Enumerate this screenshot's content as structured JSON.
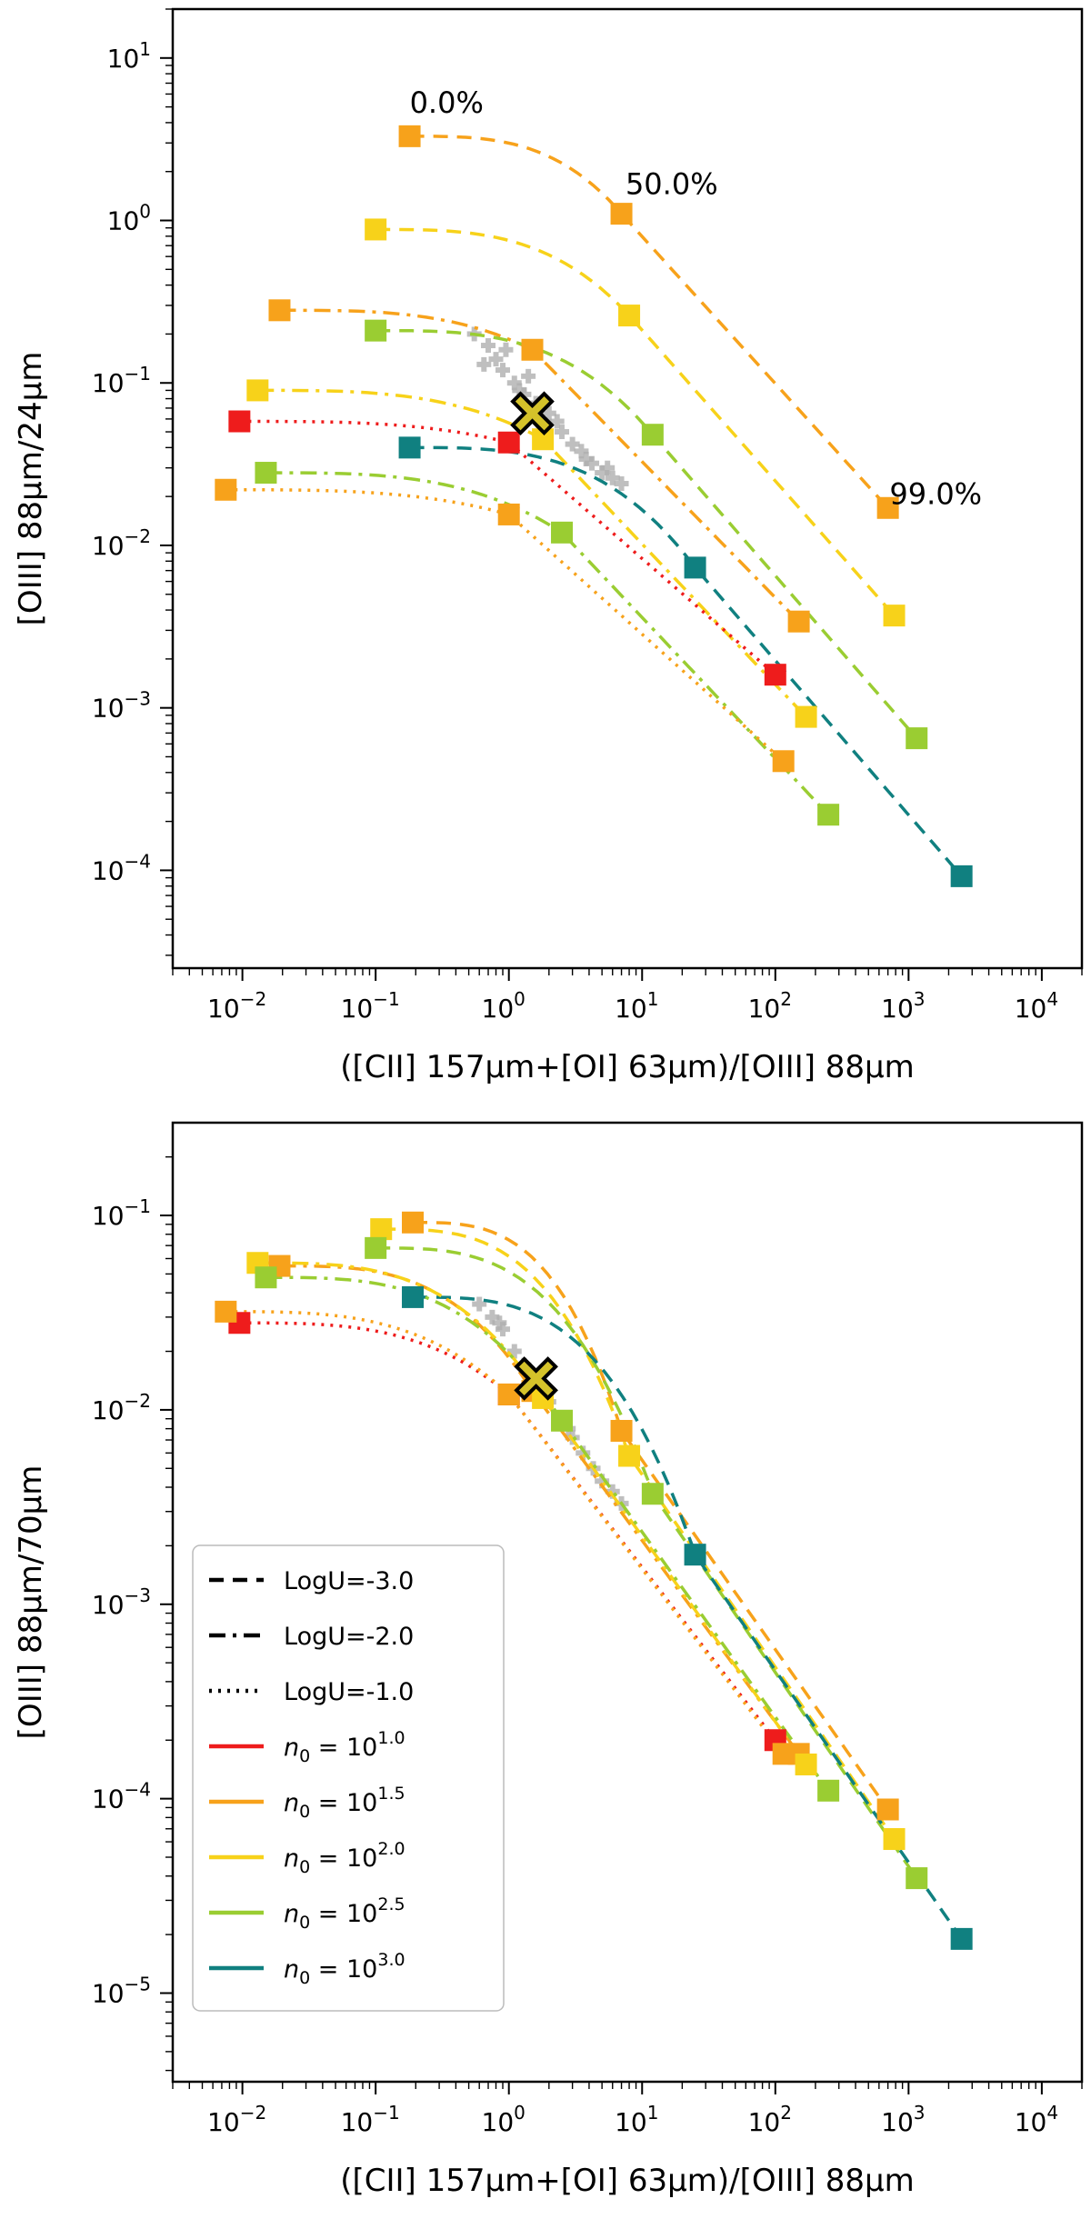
{
  "chart_data": [
    {
      "type": "line",
      "title": "",
      "xlabel": "([CII] 157µm+[OI] 63µm)/[OIII] 88µm",
      "ylabel": "[OIII] 88µm/24µm",
      "xscale": "log",
      "yscale": "log",
      "xlim": [
        0.003,
        20000
      ],
      "ylim": [
        2.5e-05,
        20
      ],
      "xtick_exponents": [
        "-2",
        "-1",
        "0",
        "1",
        "2",
        "3",
        "4"
      ],
      "ytick_exponents": [
        "-4",
        "-3",
        "-2",
        "-1",
        "0",
        "1"
      ],
      "annotations": [
        {
          "text": "0.0%",
          "x": 0.18,
          "y": 4.6
        },
        {
          "text": "50.0%",
          "x": 7.5,
          "y": 1.45
        },
        {
          "text": "99.0%",
          "x": 720,
          "y": 0.018
        }
      ],
      "series": [
        {
          "name": "n0=10^1.5, LogU=-3.0",
          "color_key": "orange",
          "style": "dashed",
          "points": [
            [
              0.18,
              3.3
            ],
            [
              7,
              1.1
            ],
            [
              700,
              0.017
            ]
          ]
        },
        {
          "name": "n0=10^2.0, LogU=-3.0",
          "color_key": "yellow",
          "style": "dashed",
          "points": [
            [
              0.1,
              0.88
            ],
            [
              8,
              0.26
            ],
            [
              780,
              0.0037
            ]
          ]
        },
        {
          "name": "n0=10^1.5, LogU=-2.0",
          "color_key": "orange",
          "style": "dashdot",
          "points": [
            [
              0.019,
              0.28
            ],
            [
              1.5,
              0.16
            ],
            [
              150,
              0.0034
            ]
          ]
        },
        {
          "name": "n0=10^2.5, LogU=-3.0",
          "color_key": "green",
          "style": "dashed",
          "points": [
            [
              0.1,
              0.21
            ],
            [
              12,
              0.048
            ],
            [
              1150,
              0.00065
            ]
          ]
        },
        {
          "name": "n0=10^2.0, LogU=-2.0",
          "color_key": "yellow",
          "style": "dashdot",
          "points": [
            [
              0.013,
              0.09
            ],
            [
              1.8,
              0.045
            ],
            [
              170,
              0.00088
            ]
          ]
        },
        {
          "name": "n0=10^1.0, LogU=-1.0",
          "color_key": "red",
          "style": "dotted",
          "points": [
            [
              0.0095,
              0.058
            ],
            [
              1.0,
              0.043
            ],
            [
              100,
              0.0016
            ]
          ]
        },
        {
          "name": "n0=10^3.0, LogU=-3.0",
          "color_key": "teal",
          "style": "dashed",
          "points": [
            [
              0.18,
              0.04
            ],
            [
              25,
              0.0073
            ],
            [
              2500,
              9.2e-05
            ]
          ]
        },
        {
          "name": "n0=10^2.5, LogU=-2.0",
          "color_key": "green",
          "style": "dashdot",
          "points": [
            [
              0.015,
              0.028
            ],
            [
              2.5,
              0.012
            ],
            [
              250,
              0.00022
            ]
          ]
        },
        {
          "name": "n0=10^1.5, LogU=-1.0",
          "color_key": "orange",
          "style": "dotted",
          "points": [
            [
              0.0075,
              0.022
            ],
            [
              1.0,
              0.0155
            ],
            [
              115,
              0.00047
            ]
          ]
        }
      ],
      "observations": [
        [
          0.55,
          0.2
        ],
        [
          0.7,
          0.17
        ],
        [
          0.65,
          0.13
        ],
        [
          0.9,
          0.12
        ],
        [
          1.1,
          0.1
        ],
        [
          0.8,
          0.14
        ],
        [
          1.3,
          0.085
        ],
        [
          1.6,
          0.075
        ],
        [
          2.0,
          0.065
        ],
        [
          1.8,
          0.055
        ],
        [
          2.5,
          0.05
        ],
        [
          3.0,
          0.042
        ],
        [
          3.5,
          0.038
        ],
        [
          4.2,
          0.032
        ],
        [
          5.0,
          0.028
        ],
        [
          6.0,
          0.026
        ],
        [
          7.0,
          0.024
        ],
        [
          1.2,
          0.09
        ],
        [
          2.3,
          0.058
        ],
        [
          3.8,
          0.034
        ],
        [
          5.5,
          0.03
        ],
        [
          0.95,
          0.16
        ],
        [
          1.4,
          0.11
        ]
      ],
      "marker": {
        "x": 1.5,
        "y": 0.065
      }
    },
    {
      "type": "line",
      "title": "",
      "xlabel": "([CII] 157µm+[OI] 63µm)/[OIII] 88µm",
      "ylabel": "[OIII] 88µm/70µm",
      "xscale": "log",
      "yscale": "log",
      "xlim": [
        0.003,
        20000
      ],
      "ylim": [
        3.5e-06,
        0.3
      ],
      "xtick_exponents": [
        "-2",
        "-1",
        "0",
        "1",
        "2",
        "3",
        "4"
      ],
      "ytick_exponents": [
        "-5",
        "-4",
        "-3",
        "-2",
        "-1"
      ],
      "legend_position": "lower-left",
      "series": [
        {
          "name": "n0=10^1.5, LogU=-3.0",
          "color_key": "orange",
          "style": "dashed",
          "points": [
            [
              0.19,
              0.092
            ],
            [
              7,
              0.0078
            ],
            [
              700,
              8.8e-05
            ]
          ]
        },
        {
          "name": "n0=10^2.0, LogU=-3.0",
          "color_key": "yellow",
          "style": "dashed",
          "points": [
            [
              0.11,
              0.085
            ],
            [
              8,
              0.0058
            ],
            [
              780,
              6.2e-05
            ]
          ]
        },
        {
          "name": "n0=10^2.5, LogU=-3.0",
          "color_key": "green",
          "style": "dashed",
          "points": [
            [
              0.1,
              0.068
            ],
            [
              12,
              0.0037
            ],
            [
              1150,
              3.9e-05
            ]
          ]
        },
        {
          "name": "n0=10^3.0, LogU=-3.0",
          "color_key": "teal",
          "style": "dashed",
          "points": [
            [
              0.19,
              0.038
            ],
            [
              25,
              0.0018
            ],
            [
              2500,
              1.9e-05
            ]
          ]
        },
        {
          "name": "n0=10^1.5, LogU=-2.0",
          "color_key": "orange",
          "style": "dashdot",
          "points": [
            [
              0.019,
              0.055
            ],
            [
              1.5,
              0.0125
            ],
            [
              150,
              0.00017
            ]
          ]
        },
        {
          "name": "n0=10^2.0, LogU=-2.0",
          "color_key": "yellow",
          "style": "dashdot",
          "points": [
            [
              0.013,
              0.057
            ],
            [
              1.8,
              0.0115
            ],
            [
              170,
              0.00015
            ]
          ]
        },
        {
          "name": "n0=10^2.5, LogU=-2.0",
          "color_key": "green",
          "style": "dashdot",
          "points": [
            [
              0.015,
              0.048
            ],
            [
              2.5,
              0.0088
            ],
            [
              250,
              0.00011
            ]
          ]
        },
        {
          "name": "n0=10^1.0, LogU=-1.0",
          "color_key": "red",
          "style": "dotted",
          "points": [
            [
              0.0095,
              0.028
            ],
            [
              1.0,
              0.012
            ],
            [
              100,
              0.0002
            ]
          ]
        },
        {
          "name": "n0=10^1.5, LogU=-1.0",
          "color_key": "orange",
          "style": "dotted",
          "points": [
            [
              0.0075,
              0.032
            ],
            [
              1.0,
              0.012
            ],
            [
              115,
              0.00017
            ]
          ]
        }
      ],
      "observations": [
        [
          0.6,
          0.035
        ],
        [
          0.75,
          0.03
        ],
        [
          0.9,
          0.026
        ],
        [
          1.1,
          0.02
        ],
        [
          1.3,
          0.017
        ],
        [
          1.6,
          0.014
        ],
        [
          2.0,
          0.011
        ],
        [
          2.4,
          0.009
        ],
        [
          3.0,
          0.0072
        ],
        [
          3.6,
          0.006
        ],
        [
          4.3,
          0.005
        ],
        [
          5.0,
          0.0043
        ],
        [
          6.0,
          0.0038
        ],
        [
          7.0,
          0.0033
        ],
        [
          0.85,
          0.028
        ],
        [
          1.8,
          0.012
        ],
        [
          2.8,
          0.008
        ]
      ],
      "marker": {
        "x": 1.6,
        "y": 0.0145
      },
      "legend": [
        {
          "label": "LogU=-3.0",
          "style": "dashed",
          "color_key": "black"
        },
        {
          "label": "LogU=-2.0",
          "style": "dashdot",
          "color_key": "black"
        },
        {
          "label": "LogU=-1.0",
          "style": "dotted",
          "color_key": "black"
        },
        {
          "label": "10^1.0",
          "exponent": "1.0",
          "style": "solid",
          "color_key": "red"
        },
        {
          "label": "10^1.5",
          "exponent": "1.5",
          "style": "solid",
          "color_key": "orange"
        },
        {
          "label": "10^2.0",
          "exponent": "2.0",
          "style": "solid",
          "color_key": "yellow"
        },
        {
          "label": "10^2.5",
          "exponent": "2.5",
          "style": "solid",
          "color_key": "green"
        },
        {
          "label": "10^3.0",
          "exponent": "3.0",
          "style": "solid",
          "color_key": "teal"
        }
      ]
    }
  ],
  "colors": {
    "red": "#ee1c1c",
    "orange": "#f7a21b",
    "yellow": "#f7d21a",
    "green": "#9acd32",
    "teal": "#108080",
    "black": "#000000",
    "obs": "#b0b0b0"
  },
  "legend_n_prefix": "n",
  "legend_n_sub": "0",
  "legend_n_eq": " = 10"
}
